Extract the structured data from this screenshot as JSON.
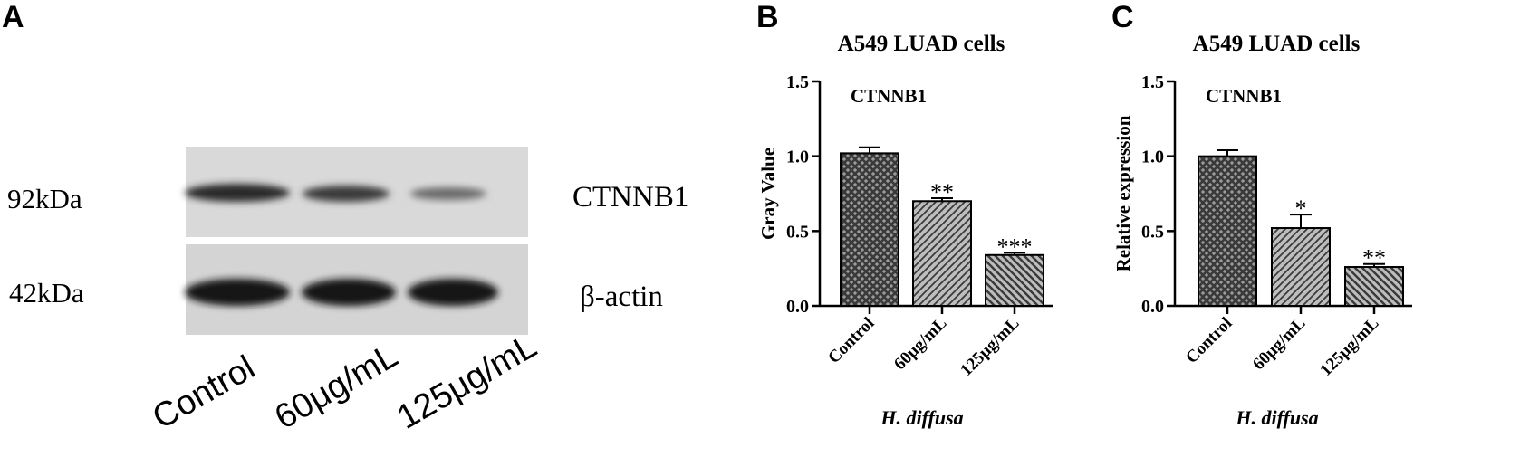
{
  "panel_a": {
    "label": "A",
    "markers": [
      "92kDa",
      "42kDa"
    ],
    "proteins": [
      "CTNNB1",
      "β-actin"
    ],
    "lanes": [
      "Control",
      "60μg/mL",
      "125μg/mL"
    ]
  },
  "chart_data": [
    {
      "type": "bar",
      "panel": "B",
      "title": "A549 LUAD cells",
      "annotation": "CTNNB1",
      "y_label": "Gray Value",
      "x_label": "H. diffusa",
      "categories": [
        "Control",
        "60μg/mL",
        "125μg/mL"
      ],
      "values": [
        1.02,
        0.7,
        0.34
      ],
      "errors": [
        0.04,
        0.02,
        0.015
      ],
      "significance": [
        null,
        "**",
        "***"
      ],
      "color": "#3a3a3a",
      "patterns": [
        "crosshatch",
        "forward",
        "backward"
      ],
      "ylim": [
        0,
        1.5
      ],
      "yticks": [
        {
          "value": 0,
          "label": "0.0"
        },
        {
          "value": 0.5,
          "label": "0.5"
        },
        {
          "value": 1,
          "label": "1.0"
        },
        {
          "value": 1.5,
          "label": "1.5"
        }
      ]
    },
    {
      "type": "bar",
      "panel": "C",
      "title": "A549 LUAD cells",
      "annotation": "CTNNB1",
      "y_label": "Relative expression",
      "x_label": "H. diffusa",
      "categories": [
        "Control",
        "60μg/mL",
        "125μg/mL"
      ],
      "values": [
        1.0,
        0.52,
        0.26
      ],
      "errors": [
        0.04,
        0.09,
        0.02
      ],
      "significance": [
        null,
        "*",
        "**"
      ],
      "color": "#3a3a3a",
      "patterns": [
        "crosshatch",
        "forward",
        "backward"
      ],
      "ylim": [
        0,
        1.5
      ],
      "yticks": [
        {
          "value": 0,
          "label": "0.0"
        },
        {
          "value": 0.5,
          "label": "0.5"
        },
        {
          "value": 1,
          "label": "1.0"
        },
        {
          "value": 1.5,
          "label": "1.5"
        }
      ]
    }
  ]
}
